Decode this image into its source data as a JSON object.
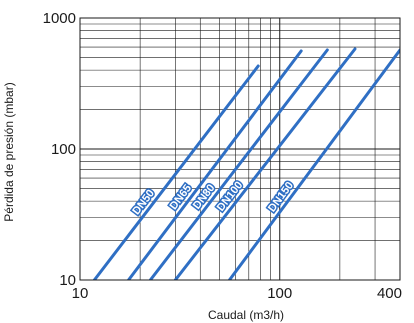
{
  "chart_data": {
    "type": "line",
    "xlabel": "Caudal (m3/h)",
    "ylabel": "Pérdida de presión (mbar)",
    "x_scale": "log",
    "y_scale": "log",
    "xlim": [
      10,
      400
    ],
    "ylim": [
      10,
      1000
    ],
    "x_ticks": [
      {
        "value": 10,
        "label": "10"
      },
      {
        "value": 100,
        "label": "100"
      },
      {
        "value": 400,
        "label": "400"
      }
    ],
    "y_ticks": [
      {
        "value": 10,
        "label": "10"
      },
      {
        "value": 100,
        "label": "100"
      },
      {
        "value": 1000,
        "label": "1000"
      }
    ],
    "grid": true,
    "line_color": "#2f6fc4",
    "grid_color": "#1a1a1a",
    "series": [
      {
        "name": "DN50",
        "points": [
          [
            11.8,
            10
          ],
          [
            78,
            430
          ]
        ]
      },
      {
        "name": "DN65",
        "points": [
          [
            17.5,
            10
          ],
          [
            128,
            560
          ]
        ]
      },
      {
        "name": "DN80",
        "points": [
          [
            22.5,
            10
          ],
          [
            173,
            570
          ]
        ]
      },
      {
        "name": "DN100",
        "points": [
          [
            30,
            10
          ],
          [
            238,
            580
          ]
        ]
      },
      {
        "name": "DN150",
        "points": [
          [
            56,
            10
          ],
          [
            400,
            570
          ]
        ]
      }
    ]
  }
}
